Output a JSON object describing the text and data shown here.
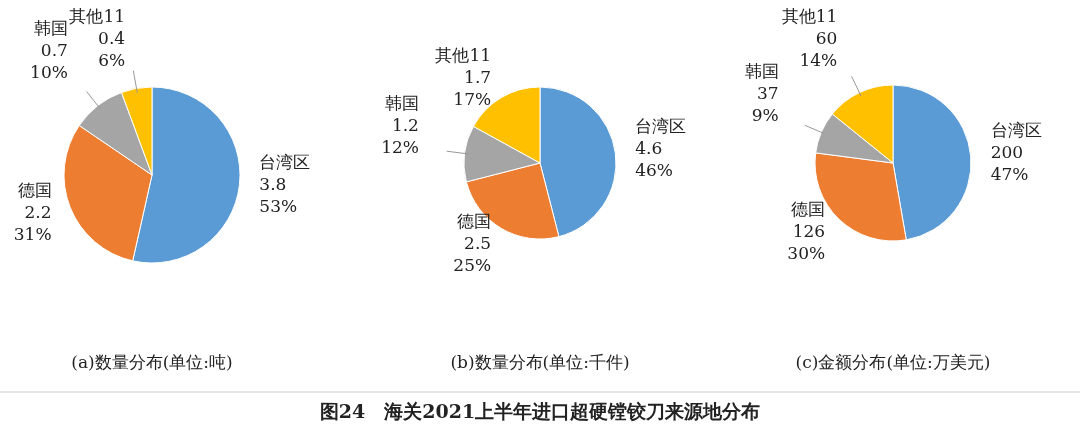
{
  "chart_data": [
    {
      "type": "pie",
      "title": "(a)数量分布(单位:吨)",
      "categories": [
        "台湾区",
        "德国",
        "韩国",
        "其他11"
      ],
      "values": [
        3.8,
        2.2,
        0.7,
        0.4
      ],
      "colors": [
        "#5b9bd5",
        "#ed7d31",
        "#a5a5a5",
        "#ffc000"
      ],
      "value_labels": [
        "3.8\n53%",
        "2.2\n31%",
        "0.7\n10%",
        "0.4\n6%"
      ]
    },
    {
      "type": "pie",
      "title": "(b)数量分布(单位:千件)",
      "categories": [
        "台湾区",
        "德国",
        "韩国",
        "其他11"
      ],
      "values": [
        4.6,
        2.5,
        1.2,
        1.7
      ],
      "colors": [
        "#5b9bd5",
        "#ed7d31",
        "#a5a5a5",
        "#ffc000"
      ],
      "value_labels": [
        "4.6\n46%",
        "2.5\n25%",
        "1.2\n12%",
        "1.7\n17%"
      ],
      "annotations": [
        "图24　海关2021上半年进口超硬镗铰刀来源地分布"
      ]
    },
    {
      "type": "pie",
      "title": "(c)金额分布(单位:万美元)",
      "categories": [
        "台湾区",
        "德国",
        "韩国",
        "其他11"
      ],
      "values": [
        200,
        126,
        37,
        60
      ],
      "colors": [
        "#5b9bd5",
        "#ed7d31",
        "#a5a5a5",
        "#ffc000"
      ],
      "value_labels": [
        "200\n47%",
        "126\n30%",
        "37\n9%",
        "60\n14%"
      ]
    }
  ]
}
